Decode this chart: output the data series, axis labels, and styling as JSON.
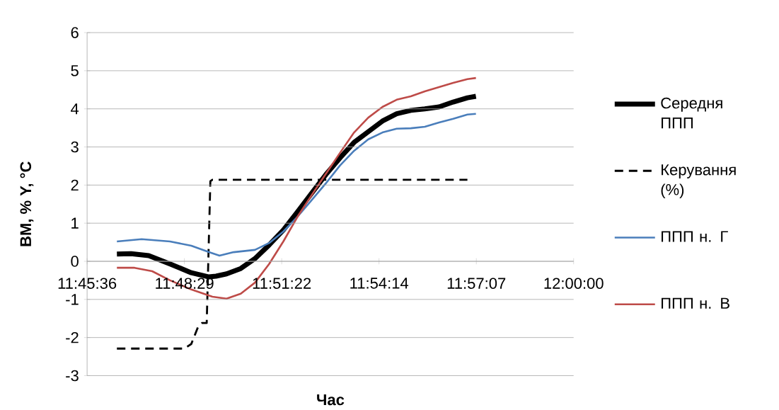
{
  "chart_data": {
    "type": "line",
    "xlabel": "Час",
    "ylabel": "ВМ, %   Y, °C",
    "xlim": [
      11.76,
      12.0
    ],
    "ylim": [
      -3,
      6
    ],
    "xticks": [
      {
        "value": 11.76,
        "label": "11:45:36"
      },
      {
        "value": 11.808,
        "label": "11:48:29"
      },
      {
        "value": 11.856,
        "label": "11:51:22"
      },
      {
        "value": 11.904,
        "label": "11:54:14"
      },
      {
        "value": 11.952,
        "label": "11:57:07"
      },
      {
        "value": 12.0,
        "label": "12:00:00"
      }
    ],
    "yticks": [
      -3,
      -2,
      -1,
      0,
      1,
      2,
      3,
      4,
      5,
      6
    ],
    "grid": "y",
    "legend": "right",
    "marker": "none",
    "series": [
      {
        "name": "Середня ППП",
        "color": "#000000",
        "line_style": "solid",
        "x": [
          11.7747,
          11.7817,
          11.7904,
          11.8009,
          11.8114,
          11.8201,
          11.8236,
          11.8288,
          11.8358,
          11.8428,
          11.8498,
          11.8568,
          11.8638,
          11.8707,
          11.8777,
          11.8847,
          11.8917,
          11.8987,
          11.9057,
          11.9127,
          11.9197,
          11.9266,
          11.9336,
          11.9406,
          11.9476,
          11.9518
        ],
        "values": [
          0.19,
          0.2,
          0.15,
          -0.07,
          -0.3,
          -0.41,
          -0.39,
          -0.33,
          -0.19,
          0.07,
          0.43,
          0.82,
          1.3,
          1.78,
          2.27,
          2.71,
          3.12,
          3.4,
          3.68,
          3.87,
          3.96,
          4.0,
          4.05,
          4.18,
          4.29,
          4.33
        ]
      },
      {
        "name": "Керування (%)",
        "color": "#000000",
        "line_style": "dashed",
        "x": [
          11.7747,
          11.8079,
          11.8114,
          11.8148,
          11.8166,
          11.819,
          11.8208,
          11.8218,
          11.9476
        ],
        "values": [
          -2.29,
          -2.29,
          -2.17,
          -1.71,
          -1.62,
          -1.62,
          2.1,
          2.14,
          2.14
        ]
      },
      {
        "name": "ППП н. Г",
        "color": "#4a7ebb",
        "line_style": "solid",
        "x": [
          11.7747,
          11.7869,
          11.8009,
          11.8114,
          11.8201,
          11.8253,
          11.8323,
          11.8428,
          11.8498,
          11.8568,
          11.8638,
          11.8707,
          11.8777,
          11.8847,
          11.8917,
          11.8987,
          11.9057,
          11.9127,
          11.9197,
          11.9266,
          11.9336,
          11.9406,
          11.9476,
          11.9518
        ],
        "values": [
          0.52,
          0.58,
          0.52,
          0.41,
          0.24,
          0.15,
          0.24,
          0.3,
          0.48,
          0.78,
          1.17,
          1.6,
          2.04,
          2.51,
          2.9,
          3.2,
          3.38,
          3.48,
          3.49,
          3.53,
          3.64,
          3.74,
          3.85,
          3.87
        ]
      },
      {
        "name": "ППП н. В",
        "color": "#be4b48",
        "line_style": "solid",
        "x": [
          11.7747,
          11.7834,
          11.7921,
          11.8009,
          11.8114,
          11.8218,
          11.8288,
          11.8358,
          11.8428,
          11.8498,
          11.8568,
          11.8638,
          11.8707,
          11.8777,
          11.8847,
          11.8917,
          11.8987,
          11.9057,
          11.9127,
          11.9197,
          11.9266,
          11.9336,
          11.9406,
          11.9476,
          11.9518
        ],
        "values": [
          -0.17,
          -0.17,
          -0.26,
          -0.5,
          -0.74,
          -0.93,
          -0.98,
          -0.85,
          -0.56,
          -0.07,
          0.52,
          1.17,
          1.73,
          2.29,
          2.84,
          3.38,
          3.77,
          4.05,
          4.24,
          4.33,
          4.46,
          4.57,
          4.68,
          4.78,
          4.81
        ]
      }
    ]
  }
}
